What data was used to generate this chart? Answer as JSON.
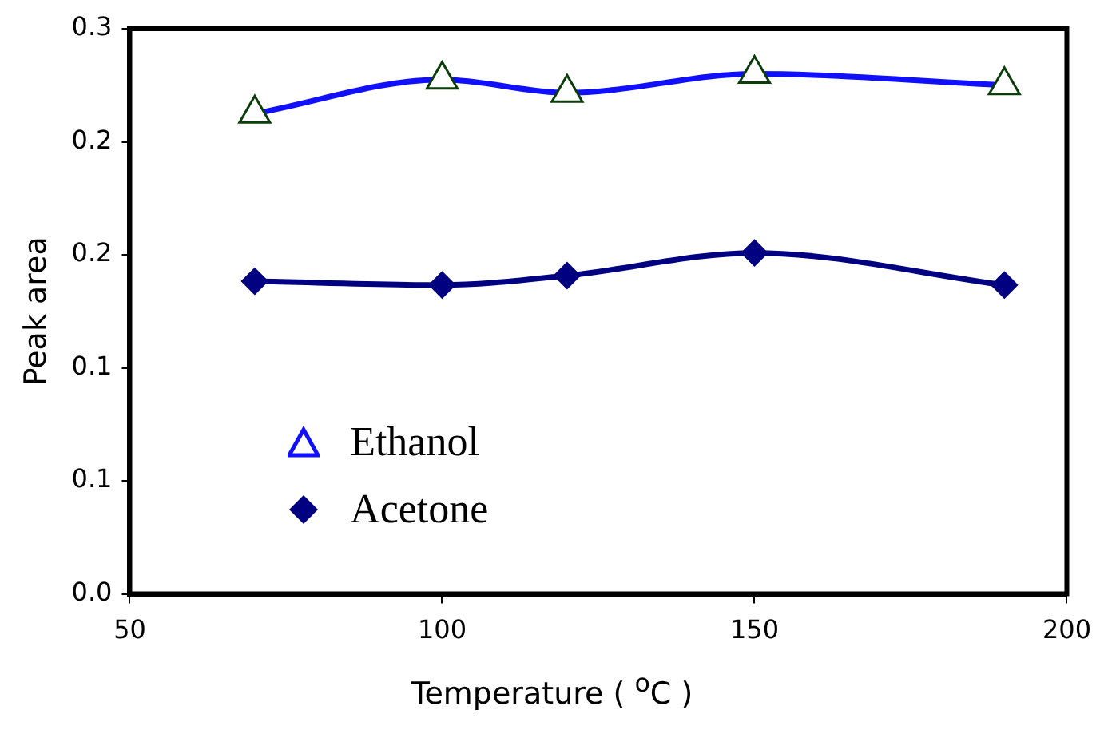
{
  "chart_data": {
    "type": "line",
    "xlabel": "Temperature ( $^{o}$C )",
    "ylabel": "Peak area",
    "x": [
      70,
      100,
      120,
      150,
      190
    ],
    "series": [
      {
        "name": "Ethanol",
        "color": "#1010ff",
        "marker": "triangle",
        "values": [
          0.255,
          0.273,
          0.266,
          0.276,
          0.27
        ]
      },
      {
        "name": "Acetone",
        "color": "#000080",
        "marker": "diamond",
        "values": [
          0.166,
          0.164,
          0.169,
          0.181,
          0.164
        ]
      }
    ],
    "xlim": [
      50,
      200
    ],
    "xticks": [
      50,
      100,
      150,
      200
    ],
    "ylim": [
      0,
      0.3
    ],
    "yticks": [
      {
        "value": 0,
        "label": "0.0"
      },
      {
        "value": 0.06,
        "label": "0.1"
      },
      {
        "value": 0.12,
        "label": "0.1"
      },
      {
        "value": 0.18,
        "label": "0.2"
      },
      {
        "value": 0.24,
        "label": "0.2"
      },
      {
        "value": 0.3,
        "label": "0.3"
      }
    ],
    "grid": false,
    "legend": "bottom left",
    "line_style": "solid"
  }
}
